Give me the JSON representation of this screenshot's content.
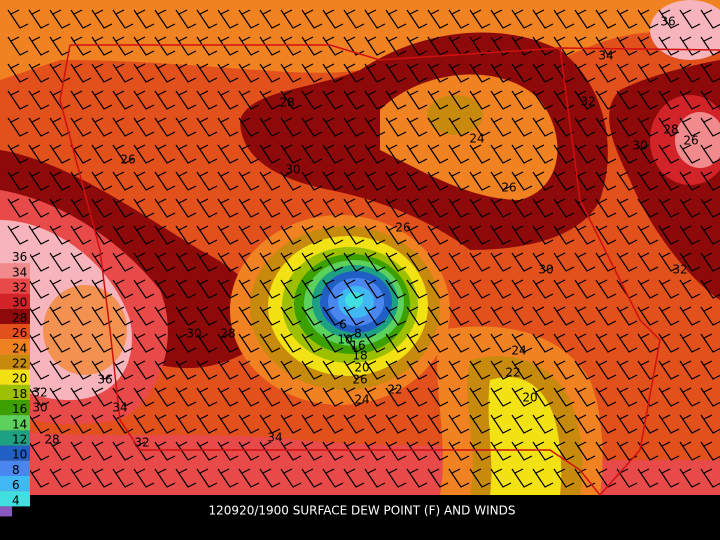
{
  "title": "120920/1900 SURFACE DEW POINT (F) AND WINDS",
  "legend": [
    {
      "label": 36,
      "color": "#f7b4bc"
    },
    {
      "label": 34,
      "color": "#f08a8c"
    },
    {
      "label": 32,
      "color": "#e84a4a"
    },
    {
      "label": 30,
      "color": "#d22428"
    },
    {
      "label": 28,
      "color": "#8e0a0a"
    },
    {
      "label": 26,
      "color": "#e2501c"
    },
    {
      "label": 24,
      "color": "#f08222"
    },
    {
      "label": 22,
      "color": "#c88a0c"
    },
    {
      "label": 20,
      "color": "#f2e214"
    },
    {
      "label": 18,
      "color": "#9cc000"
    },
    {
      "label": 16,
      "color": "#3ca000"
    },
    {
      "label": 14,
      "color": "#5cd25c"
    },
    {
      "label": 12,
      "color": "#1ea082"
    },
    {
      "label": 10,
      "color": "#2060c4"
    },
    {
      "label": 8,
      "color": "#4a86f0"
    },
    {
      "label": 6,
      "color": "#40b8f4"
    },
    {
      "label": 4,
      "color": "#40e0e0"
    }
  ],
  "contour_labels": [
    36,
    34,
    32,
    28,
    26,
    30,
    24,
    28,
    30,
    26,
    26,
    26,
    30,
    32,
    30,
    28,
    6,
    8,
    10,
    16,
    18,
    20,
    26,
    24,
    22,
    36,
    34,
    32,
    30,
    28,
    32,
    34,
    24,
    22,
    20
  ]
}
